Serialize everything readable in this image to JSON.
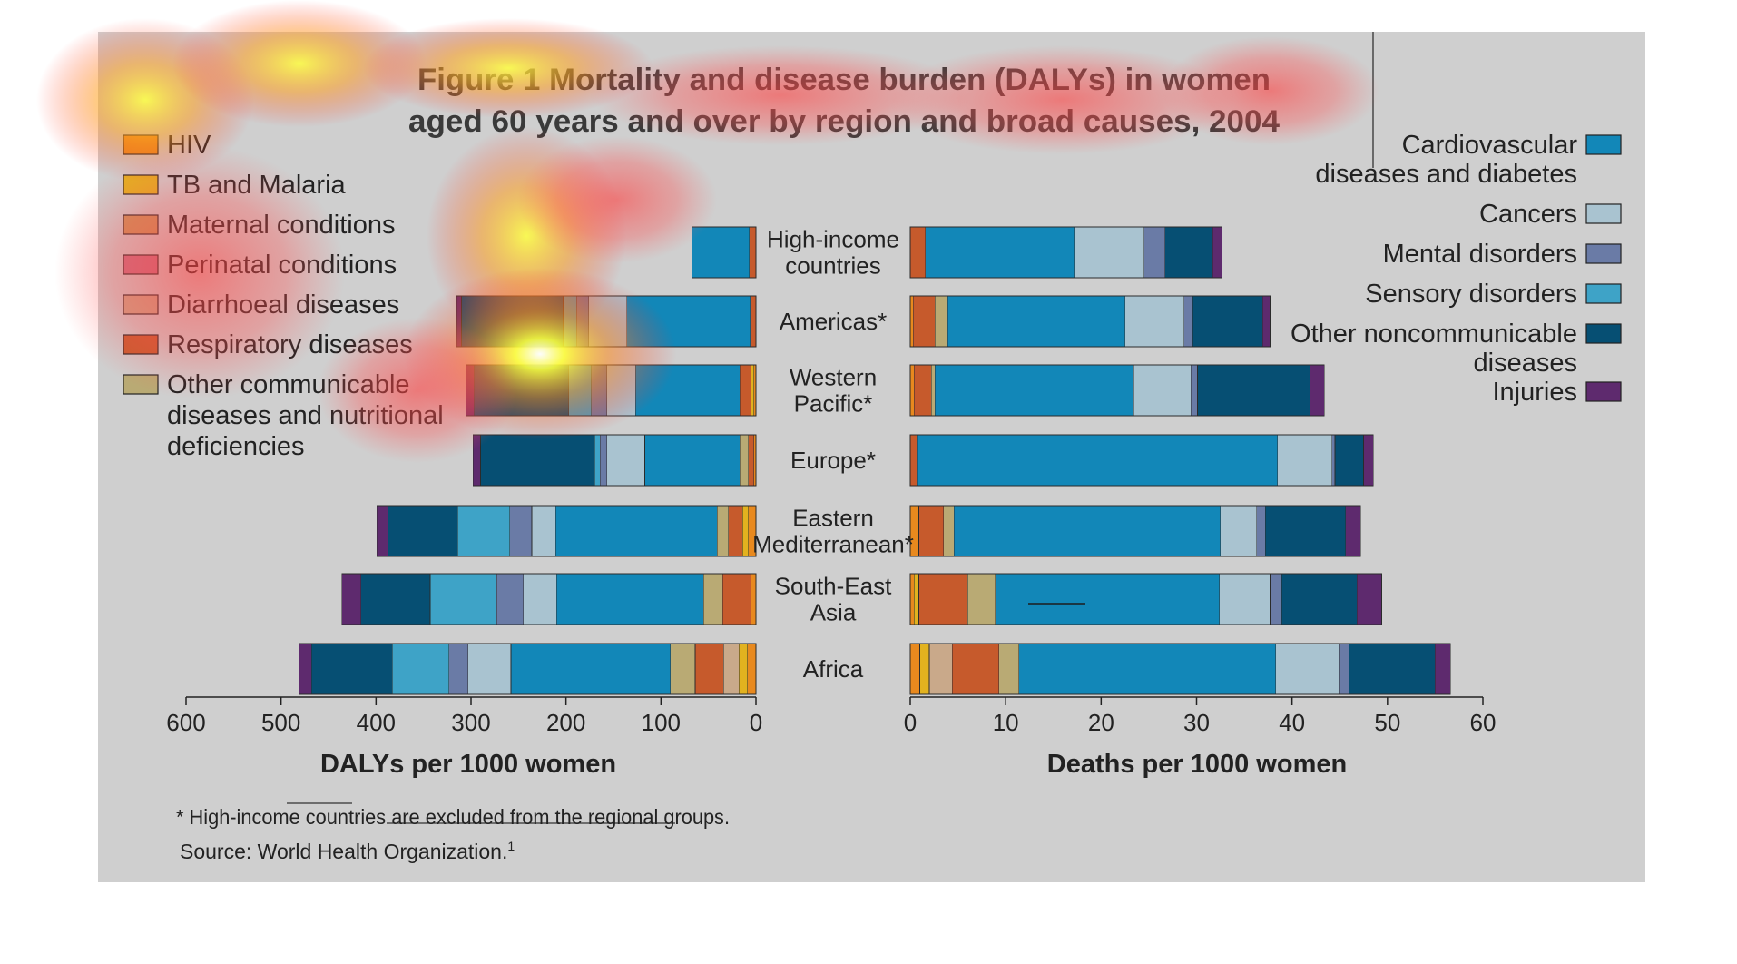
{
  "chart_data": {
    "type": "bar",
    "title_line1": "Figure 1 Mortality and disease burden (DALYs) in women",
    "title_line2": "aged 60 years and over by region and broad causes, 2004",
    "regions": [
      [
        "High-income",
        "countries"
      ],
      [
        "Americas*"
      ],
      [
        "Western",
        "Pacific*"
      ],
      [
        "Europe*"
      ],
      [
        "Eastern",
        "Mediterranean*"
      ],
      [
        "South-East",
        "Asia"
      ],
      [
        "Africa"
      ]
    ],
    "causes": [
      {
        "name": "HIV",
        "color": "#e8891e"
      },
      {
        "name": "TB and Malaria",
        "color": "#e2b21f"
      },
      {
        "name": "Maternal conditions",
        "color": "#c9955a"
      },
      {
        "name": "Perinatal conditions",
        "color": "#c76f84"
      },
      {
        "name": "Diarrhoeal diseases",
        "color": "#c9a98a"
      },
      {
        "name": "Respiratory diseases",
        "color": "#c65a2c"
      },
      {
        "name": "Other communicable diseases and nutritional deficiencies",
        "color": "#b9aa74"
      },
      {
        "name": "Cardiovascular diseases and diabetes",
        "color": "#1287b8"
      },
      {
        "name": "Cancers",
        "color": "#a9c3d0"
      },
      {
        "name": "Mental disorders",
        "color": "#6a7ba6"
      },
      {
        "name": "Sensory disorders",
        "color": "#3ea3c7"
      },
      {
        "name": "Other noncommunicable diseases",
        "color": "#064f73"
      },
      {
        "name": "Injuries",
        "color": "#5e2a6e"
      }
    ],
    "left_legend_lines": [
      [
        "HIV"
      ],
      [
        "TB and Malaria"
      ],
      [
        "Maternal conditions"
      ],
      [
        "Perinatal conditions"
      ],
      [
        "Diarrhoeal diseases"
      ],
      [
        "Respiratory diseases"
      ],
      [
        "Other communicable",
        "diseases and nutritional",
        "deficiencies"
      ]
    ],
    "right_legend_lines": [
      [
        "Cardiovascular",
        "diseases and diabetes"
      ],
      [
        "Cancers"
      ],
      [
        "Mental disorders"
      ],
      [
        "Sensory disorders"
      ],
      [
        "Other noncommunicable",
        "diseases"
      ],
      [
        "Injuries"
      ]
    ],
    "dalys": {
      "xlabel": "DALYs per 1000 women",
      "xlim": [
        0,
        600
      ],
      "ticks": [
        "600",
        "500",
        "400",
        "300",
        "200",
        "100",
        "0"
      ],
      "values": [
        [
          0,
          0,
          0,
          0,
          0,
          7,
          0,
          60,
          0,
          0,
          0,
          0,
          0
        ],
        [
          0,
          0,
          0,
          0,
          0,
          6,
          0,
          130,
          40,
          13,
          14,
          107,
          5
        ],
        [
          2,
          3,
          0,
          0,
          0,
          12,
          0,
          110,
          30,
          16,
          24,
          100,
          8
        ],
        [
          2,
          0,
          0,
          0,
          0,
          6,
          9,
          100,
          40,
          7,
          6,
          120,
          8
        ],
        [
          8,
          6,
          0,
          0,
          0,
          15,
          12,
          170,
          25,
          23,
          55,
          73,
          12
        ],
        [
          5,
          0,
          0,
          0,
          0,
          30,
          20,
          155,
          35,
          28,
          70,
          73,
          20
        ],
        [
          9,
          9,
          0,
          0,
          16,
          30,
          26,
          168,
          45,
          20,
          60,
          85,
          13
        ]
      ]
    },
    "deaths": {
      "xlabel": "Deaths per 1000 women",
      "xlim": [
        0,
        60
      ],
      "ticks": [
        "0",
        "10",
        "20",
        "30",
        "40",
        "50",
        "60"
      ],
      "values": [
        [
          0,
          0,
          0,
          0,
          0,
          1.6,
          0,
          15.6,
          7.3,
          2.2,
          0,
          5.0,
          1.0
        ],
        [
          0.3,
          0,
          0,
          0,
          0,
          2.3,
          1.3,
          18.6,
          6.2,
          0.9,
          0,
          7.3,
          0.8
        ],
        [
          0.4,
          0,
          0,
          0,
          0,
          1.8,
          0.4,
          20.8,
          6.0,
          0.7,
          0,
          11.8,
          1.5
        ],
        [
          0,
          0,
          0,
          0,
          0,
          0.7,
          0,
          37.8,
          5.7,
          0.3,
          0,
          3.0,
          1.0
        ],
        [
          0.9,
          0,
          0,
          0,
          0,
          2.6,
          1.1,
          27.9,
          3.8,
          0.9,
          0,
          8.4,
          1.6
        ],
        [
          0.4,
          0.5,
          0,
          0,
          0,
          5.1,
          2.9,
          23.5,
          5.3,
          1.2,
          0,
          7.9,
          2.6
        ],
        [
          1.0,
          1.0,
          0,
          0,
          2.4,
          4.9,
          2.1,
          26.9,
          6.6,
          1.1,
          0,
          9.0,
          1.6
        ]
      ]
    },
    "footnote": "* High-income countries are excluded from the regional groups.",
    "source": "Source: World Health Organization.",
    "source_sup": "1",
    "grid": false,
    "legend": "left and right sides"
  }
}
